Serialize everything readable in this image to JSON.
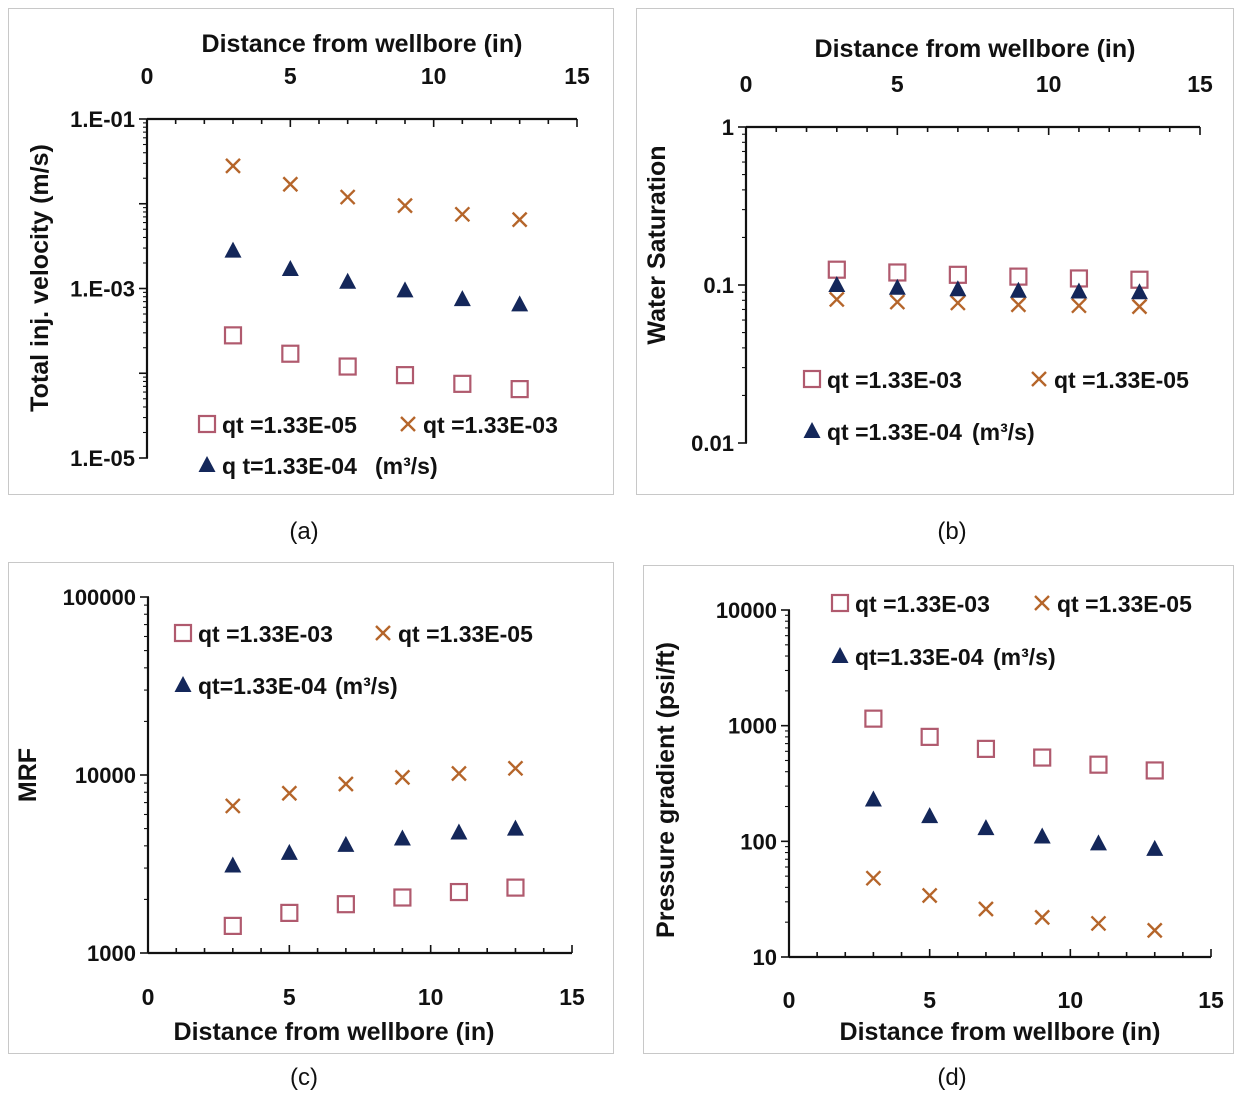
{
  "panel_tags": [
    "(a)",
    "(b)",
    "(c)",
    "(d)"
  ],
  "colors": {
    "square": "#b05a6e",
    "cross": "#b5652a",
    "triangle": "#14275a",
    "axis": "#111111"
  },
  "chart_data": [
    {
      "id": "a",
      "type": "scatter",
      "xlabel": "Distance from wellbore (in)",
      "ylabel": "Total inj. velocity (m/s)",
      "x_axis_position": "top",
      "xlim": [
        0,
        15
      ],
      "xticks": [
        "0",
        "5",
        "10",
        "15"
      ],
      "yscale": "log",
      "ylim": [
        1e-05,
        0.1
      ],
      "yticks": [
        {
          "v": 0.1,
          "label": "1.E-01"
        },
        {
          "v": 0.001,
          "label": "1.E-03"
        },
        {
          "v": 1e-05,
          "label": "1.E-05"
        }
      ],
      "series": [
        {
          "name": "qt =1.33E-05",
          "marker": "square",
          "x": [
            3,
            5,
            7,
            9,
            11,
            13
          ],
          "y": [
            0.00028,
            0.00017,
            0.00012,
            9.5e-05,
            7.5e-05,
            6.5e-05
          ]
        },
        {
          "name": "qt =1.33E-03",
          "marker": "cross",
          "x": [
            3,
            5,
            7,
            9,
            11,
            13
          ],
          "y": [
            0.028,
            0.017,
            0.012,
            0.0095,
            0.0075,
            0.0065
          ]
        },
        {
          "name": "q t=1.33E-04",
          "marker": "triangle",
          "x": [
            3,
            5,
            7,
            9,
            11,
            13
          ],
          "y": [
            0.0028,
            0.0017,
            0.0012,
            0.00095,
            0.00075,
            0.00065
          ]
        }
      ],
      "legend": [
        {
          "series": 0,
          "text": "qt =1.33E-05"
        },
        {
          "series": 1,
          "text": "qt =1.33E-03"
        },
        {
          "series": 2,
          "text": "q t=1.33E-04",
          "unit": "(m³/s)"
        }
      ]
    },
    {
      "id": "b",
      "type": "scatter",
      "xlabel": "Distance from wellbore (in)",
      "ylabel": "Water Saturation",
      "x_axis_position": "top",
      "xlim": [
        0,
        15
      ],
      "xticks": [
        "0",
        "5",
        "10",
        "15"
      ],
      "yscale": "log",
      "ylim": [
        0.01,
        1
      ],
      "yticks": [
        {
          "v": 1,
          "label": "1"
        },
        {
          "v": 0.1,
          "label": "0.1"
        },
        {
          "v": 0.01,
          "label": "0.01"
        }
      ],
      "series": [
        {
          "name": "qt =1.33E-03",
          "marker": "square",
          "x": [
            3,
            5,
            7,
            9,
            11,
            13
          ],
          "y": [
            0.125,
            0.12,
            0.116,
            0.113,
            0.11,
            0.108
          ]
        },
        {
          "name": "qt =1.33E-05",
          "marker": "cross",
          "x": [
            3,
            5,
            7,
            9,
            11,
            13
          ],
          "y": [
            0.081,
            0.078,
            0.077,
            0.075,
            0.074,
            0.073
          ]
        },
        {
          "name": "qt =1.33E-04",
          "marker": "triangle",
          "x": [
            3,
            5,
            7,
            9,
            11,
            13
          ],
          "y": [
            0.1,
            0.096,
            0.094,
            0.092,
            0.091,
            0.09
          ]
        }
      ],
      "legend": [
        {
          "series": 0,
          "text": "qt =1.33E-03"
        },
        {
          "series": 1,
          "text": "qt =1.33E-05"
        },
        {
          "series": 2,
          "text": "qt =1.33E-04",
          "unit": "(m³/s)"
        }
      ]
    },
    {
      "id": "c",
      "type": "scatter",
      "xlabel": "Distance from wellbore (in)",
      "ylabel": "MRF",
      "x_axis_position": "bottom",
      "xlim": [
        0,
        15
      ],
      "xticks": [
        "0",
        "5",
        "10",
        "15"
      ],
      "yscale": "log",
      "ylim": [
        1000,
        100000
      ],
      "yticks": [
        {
          "v": 100000,
          "label": "100000"
        },
        {
          "v": 10000,
          "label": "10000"
        },
        {
          "v": 1000,
          "label": "1000"
        }
      ],
      "series": [
        {
          "name": "qt =1.33E-03",
          "marker": "square",
          "x": [
            3,
            5,
            7,
            9,
            11,
            13
          ],
          "y": [
            1420,
            1680,
            1880,
            2050,
            2200,
            2330
          ]
        },
        {
          "name": "qt =1.33E-05",
          "marker": "cross",
          "x": [
            3,
            5,
            7,
            9,
            11,
            13
          ],
          "y": [
            6700,
            7900,
            8900,
            9700,
            10200,
            10900
          ]
        },
        {
          "name": "qt=1.33E-04",
          "marker": "triangle",
          "x": [
            3,
            5,
            7,
            9,
            11,
            13
          ],
          "y": [
            3100,
            3650,
            4050,
            4400,
            4750,
            5000
          ]
        }
      ],
      "legend": [
        {
          "series": 0,
          "text": "qt =1.33E-03"
        },
        {
          "series": 1,
          "text": "qt =1.33E-05"
        },
        {
          "series": 2,
          "text": "qt=1.33E-04",
          "unit": "(m³/s)"
        }
      ]
    },
    {
      "id": "d",
      "type": "scatter",
      "xlabel": "Distance from wellbore (in)",
      "ylabel": "Pressure gradient (psi/ft)",
      "x_axis_position": "bottom",
      "xlim": [
        0,
        15
      ],
      "xticks": [
        "0",
        "5",
        "10",
        "15"
      ],
      "yscale": "log",
      "ylim": [
        10,
        10000
      ],
      "yticks": [
        {
          "v": 10000,
          "label": "10000"
        },
        {
          "v": 1000,
          "label": "1000"
        },
        {
          "v": 100,
          "label": "100"
        },
        {
          "v": 10,
          "label": "10"
        }
      ],
      "series": [
        {
          "name": "qt =1.33E-03",
          "marker": "square",
          "x": [
            3,
            5,
            7,
            9,
            11,
            13
          ],
          "y": [
            1150,
            800,
            630,
            530,
            460,
            410
          ]
        },
        {
          "name": "qt =1.33E-05",
          "marker": "cross",
          "x": [
            3,
            5,
            7,
            9,
            11,
            13
          ],
          "y": [
            48,
            34,
            26,
            22,
            19.5,
            17
          ]
        },
        {
          "name": "qt=1.33E-04",
          "marker": "triangle",
          "x": [
            3,
            5,
            7,
            9,
            11,
            13
          ],
          "y": [
            230,
            165,
            130,
            110,
            96,
            86
          ]
        }
      ],
      "legend": [
        {
          "series": 0,
          "text": "qt =1.33E-03"
        },
        {
          "series": 1,
          "text": "qt =1.33E-05"
        },
        {
          "series": 2,
          "text": "qt=1.33E-04",
          "unit": "(m³/s)"
        }
      ]
    }
  ]
}
